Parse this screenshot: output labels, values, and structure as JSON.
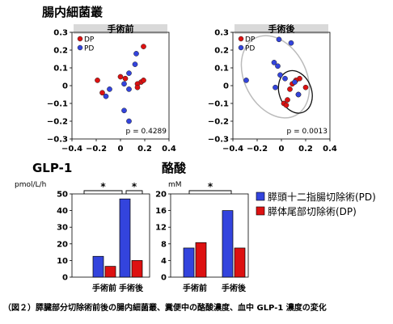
{
  "section_titles": {
    "microbiota": "腸内細菌叢",
    "glp1": "GLP-1",
    "butyrate": "酪酸"
  },
  "caption": "（図２）膵臓部分切除術前後の腸内細菌叢、糞便中の酪酸濃度、血中 GLP-1 濃度の変化",
  "colors": {
    "PD": "#3344dd",
    "DP": "#dd1111",
    "panel_header": "#d9d9d9",
    "ellipse_all": "#bbbbbb",
    "ellipse_dp": "#111111"
  },
  "chart_data": [
    {
      "type": "scatter",
      "title": "手術前",
      "legend": [
        "DP",
        "PD"
      ],
      "legend_position": "top-left",
      "xlim": [
        -0.4,
        0.4
      ],
      "ylim": [
        -0.3,
        0.3
      ],
      "xticks": [
        "−0.4",
        "−0.2",
        "0",
        "0.2",
        "0.4"
      ],
      "yticks": [
        "0.3",
        "0.2",
        "0.1",
        "0",
        "−0.1",
        "−0.2",
        "−0.3"
      ],
      "xtick_values": [
        -0.4,
        -0.2,
        0,
        0.2,
        0.4
      ],
      "ytick_values": [
        0.3,
        0.2,
        0.1,
        0,
        -0.1,
        -0.2,
        -0.3
      ],
      "series": [
        {
          "name": "DP",
          "points": [
            [
              0.19,
              0.22
            ],
            [
              -0.19,
              0.03
            ],
            [
              -0.15,
              -0.04
            ],
            [
              0.0,
              0.05
            ],
            [
              0.04,
              0.04
            ],
            [
              0.17,
              0.02
            ],
            [
              0.19,
              0.03
            ],
            [
              0.14,
              0.01
            ],
            [
              0.14,
              -0.01
            ]
          ]
        },
        {
          "name": "PD",
          "points": [
            [
              0.13,
              0.18
            ],
            [
              0.12,
              0.12
            ],
            [
              0.07,
              0.07
            ],
            [
              0.03,
              0.01
            ],
            [
              0.07,
              -0.02
            ],
            [
              -0.09,
              -0.02
            ],
            [
              -0.12,
              -0.06
            ],
            [
              0.03,
              -0.14
            ],
            [
              0.07,
              -0.2
            ]
          ]
        }
      ],
      "annotation": "p = 0.4289"
    },
    {
      "type": "scatter",
      "title": "手術後",
      "legend": [
        "DP",
        "PD"
      ],
      "legend_position": "top-left",
      "xlim": [
        -0.4,
        0.4
      ],
      "ylim": [
        -0.3,
        0.3
      ],
      "xticks": [
        "−0.4",
        "−0.2",
        "0",
        "0.2",
        "0.4"
      ],
      "yticks": [
        "0.3",
        "0.2",
        "0.1",
        "0",
        "−0.1",
        "−0.2",
        "−0.3"
      ],
      "xtick_values": [
        -0.4,
        -0.2,
        0,
        0.2,
        0.4
      ],
      "ytick_values": [
        0.3,
        0.2,
        0.1,
        0,
        -0.1,
        -0.2,
        -0.3
      ],
      "series": [
        {
          "name": "DP",
          "points": [
            [
              0.15,
              0.04
            ],
            [
              0.12,
              0.03
            ],
            [
              0.09,
              0.01
            ],
            [
              0.2,
              -0.01
            ],
            [
              0.07,
              -0.02
            ],
            [
              0.14,
              -0.05
            ],
            [
              0.05,
              -0.08
            ],
            [
              0.02,
              -0.1
            ],
            [
              0.04,
              -0.11
            ]
          ]
        },
        {
          "name": "PD",
          "points": [
            [
              -0.02,
              0.26
            ],
            [
              0.08,
              0.24
            ],
            [
              -0.06,
              0.13
            ],
            [
              -0.03,
              0.11
            ],
            [
              -0.01,
              0.06
            ],
            [
              0.03,
              0.04
            ],
            [
              -0.29,
              0.03
            ],
            [
              0.11,
              0.02
            ],
            [
              -0.05,
              -0.01
            ],
            [
              0.14,
              -0.05
            ]
          ]
        }
      ],
      "annotation": "p = 0.0013"
    },
    {
      "type": "bar",
      "title": "GLP-1",
      "ylabel": "pmol/L/h",
      "ylim": [
        0,
        50
      ],
      "yticks": [
        0,
        10,
        20,
        30,
        40,
        50
      ],
      "categories": [
        "手術前",
        "手術後"
      ],
      "series": [
        {
          "name": "膵頭十二指腸切除術(PD)",
          "values": [
            12.5,
            47
          ]
        },
        {
          "name": "膵体尾部切除術(DP)",
          "values": [
            6.5,
            10
          ]
        }
      ],
      "significance": [
        "*",
        "*"
      ]
    },
    {
      "type": "bar",
      "title": "酪酸",
      "ylabel": "mM",
      "ylim": [
        0,
        20
      ],
      "yticks": [
        0,
        4,
        8,
        12,
        16,
        20
      ],
      "categories": [
        "手術前",
        "手術後"
      ],
      "series": [
        {
          "name": "膵頭十二指腸切除術(PD)",
          "values": [
            7,
            16
          ]
        },
        {
          "name": "膵体尾部切除術(DP)",
          "values": [
            8.3,
            7
          ]
        }
      ],
      "significance": [
        "*"
      ]
    }
  ]
}
